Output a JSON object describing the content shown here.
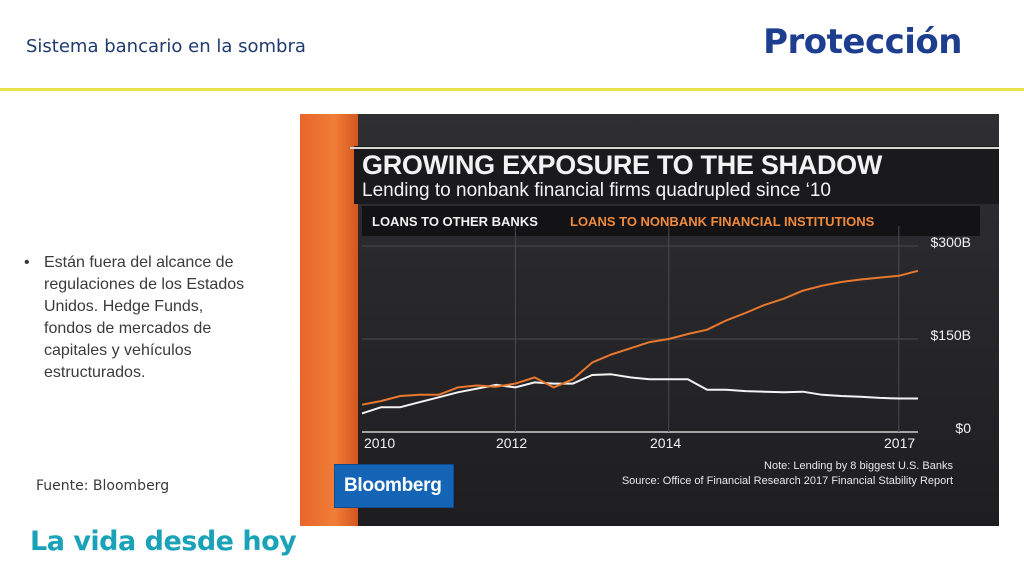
{
  "slide": {
    "title": "Sistema bancario en la sombra",
    "brand": "Protección",
    "bullet": "Están fuera del alcance de regulaciones de los Estados Unidos. Hedge Funds, fondos de mercados de capitales y vehículos estructurados.",
    "bullet_symbol": "•",
    "source": "Fuente: Bloomberg",
    "tagline": "La vida desde hoy"
  },
  "chart_data": {
    "type": "line",
    "title": "GROWING EXPOSURE TO THE SHADOW",
    "subtitle": "Lending to nonbank financial firms quadrupled since ‘10",
    "x_ticks": [
      "2010",
      "2012",
      "2014",
      "2017"
    ],
    "y_ticks": [
      "$300B",
      "$150B",
      "$0"
    ],
    "ylim": [
      0,
      300
    ],
    "xlim": [
      2010,
      2017.25
    ],
    "grid": true,
    "series": [
      {
        "name": "LOANS TO OTHER BANKS",
        "color": "#f2f2f2",
        "points": [
          [
            2010,
            30
          ],
          [
            2010.25,
            40
          ],
          [
            2010.5,
            40
          ],
          [
            2010.75,
            48
          ],
          [
            2011,
            56
          ],
          [
            2011.25,
            64
          ],
          [
            2011.5,
            70
          ],
          [
            2011.75,
            76
          ],
          [
            2012,
            72
          ],
          [
            2012.25,
            80
          ],
          [
            2012.5,
            78
          ],
          [
            2012.75,
            78
          ],
          [
            2013,
            92
          ],
          [
            2013.25,
            93
          ],
          [
            2013.5,
            88
          ],
          [
            2013.75,
            85
          ],
          [
            2014,
            85
          ],
          [
            2014.25,
            85
          ],
          [
            2014.5,
            68
          ],
          [
            2014.75,
            68
          ],
          [
            2015,
            66
          ],
          [
            2015.25,
            65
          ],
          [
            2015.5,
            64
          ],
          [
            2015.75,
            65
          ],
          [
            2016,
            60
          ],
          [
            2016.25,
            58
          ],
          [
            2016.5,
            57
          ],
          [
            2016.75,
            55
          ],
          [
            2017,
            54
          ],
          [
            2017.25,
            54
          ]
        ]
      },
      {
        "name": "LOANS TO NONBANK FINANCIAL INSTITUTIONS",
        "color": "#e8782e",
        "points": [
          [
            2010,
            44
          ],
          [
            2010.25,
            50
          ],
          [
            2010.5,
            58
          ],
          [
            2010.75,
            60
          ],
          [
            2011,
            60
          ],
          [
            2011.25,
            72
          ],
          [
            2011.5,
            75
          ],
          [
            2011.75,
            73
          ],
          [
            2012,
            78
          ],
          [
            2012.25,
            88
          ],
          [
            2012.5,
            72
          ],
          [
            2012.75,
            85
          ],
          [
            2013,
            112
          ],
          [
            2013.25,
            125
          ],
          [
            2013.5,
            135
          ],
          [
            2013.75,
            145
          ],
          [
            2014,
            150
          ],
          [
            2014.25,
            158
          ],
          [
            2014.5,
            165
          ],
          [
            2014.75,
            180
          ],
          [
            2015,
            192
          ],
          [
            2015.25,
            205
          ],
          [
            2015.5,
            215
          ],
          [
            2015.75,
            228
          ],
          [
            2016,
            236
          ],
          [
            2016.25,
            242
          ],
          [
            2016.5,
            246
          ],
          [
            2016.75,
            249
          ],
          [
            2017,
            252
          ],
          [
            2017.25,
            260
          ]
        ]
      }
    ],
    "notes": [
      "Note: Lending by 8 biggest U.S. Banks",
      "Source: Office of Financial Research 2017 Financial Stability Report"
    ],
    "logo_text": "Bloomberg"
  }
}
